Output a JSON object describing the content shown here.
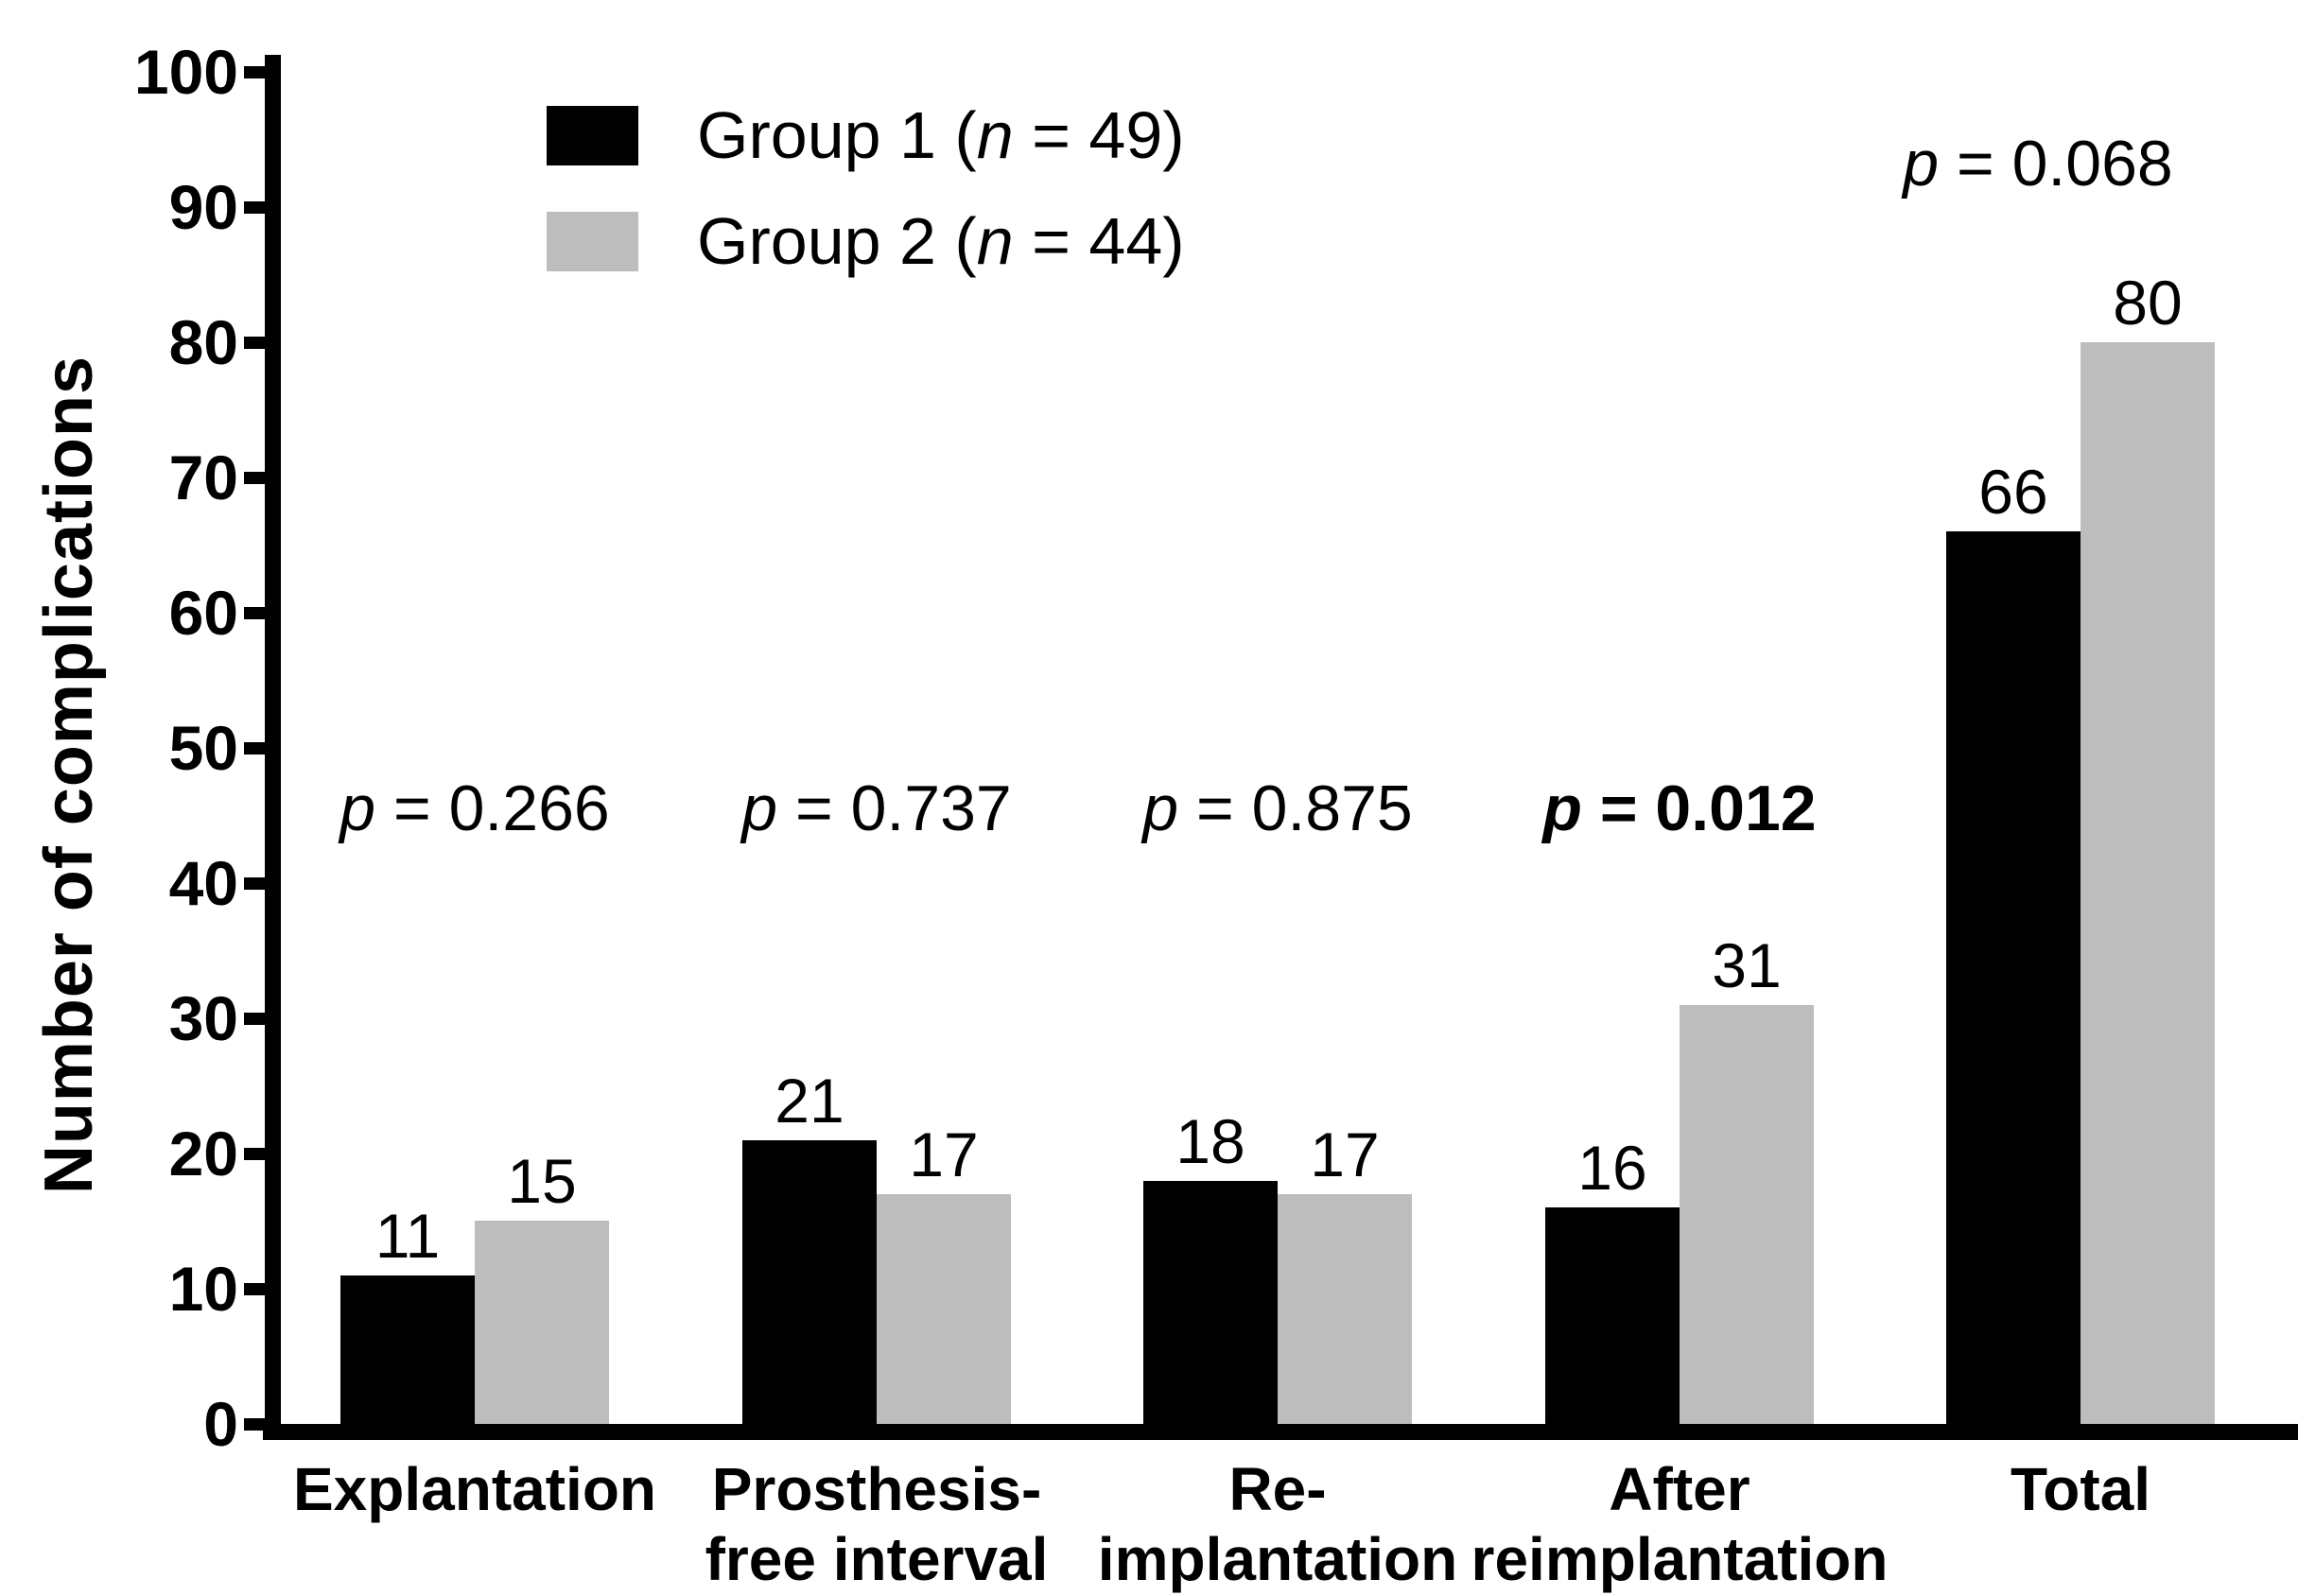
{
  "chart_data": {
    "type": "bar",
    "title": "",
    "ylabel": "Number of complications",
    "xlabel": "",
    "ylim": [
      0,
      100
    ],
    "yticks": [
      0,
      10,
      20,
      30,
      40,
      50,
      60,
      70,
      80,
      90,
      100
    ],
    "grid": false,
    "legend_position": "top-left-inside",
    "categories": [
      "Explantation",
      "Prosthesis-free interval",
      "Re-implantation",
      "After reimplantation",
      "Total"
    ],
    "category_label_lines": [
      [
        "Explantation"
      ],
      [
        "Prosthesis-",
        "free interval"
      ],
      [
        "Re-",
        "implantation"
      ],
      [
        "After",
        "reimplantation"
      ],
      [
        "Total"
      ]
    ],
    "series": [
      {
        "name": "Group 1 (n = 49)",
        "color": "#000000",
        "values": [
          11,
          21,
          18,
          16,
          66
        ]
      },
      {
        "name": "Group 2 (n = 44)",
        "color": "#bdbdbd",
        "values": [
          15,
          17,
          17,
          31,
          80
        ]
      }
    ],
    "value_labels_shown": true,
    "p_values": [
      {
        "text": "p = 0.266",
        "bold": false,
        "category": "Explantation",
        "placement": "mid-height"
      },
      {
        "text": "p = 0.737",
        "bold": false,
        "category": "Prosthesis-free interval",
        "placement": "mid-height"
      },
      {
        "text": "p = 0.875",
        "bold": false,
        "category": "Re-implantation",
        "placement": "mid-height"
      },
      {
        "text": "p = 0.012",
        "bold": true,
        "category": "After reimplantation",
        "placement": "mid-height"
      },
      {
        "text": "p = 0.068",
        "bold": false,
        "category": "Total",
        "placement": "above-bars"
      }
    ]
  }
}
